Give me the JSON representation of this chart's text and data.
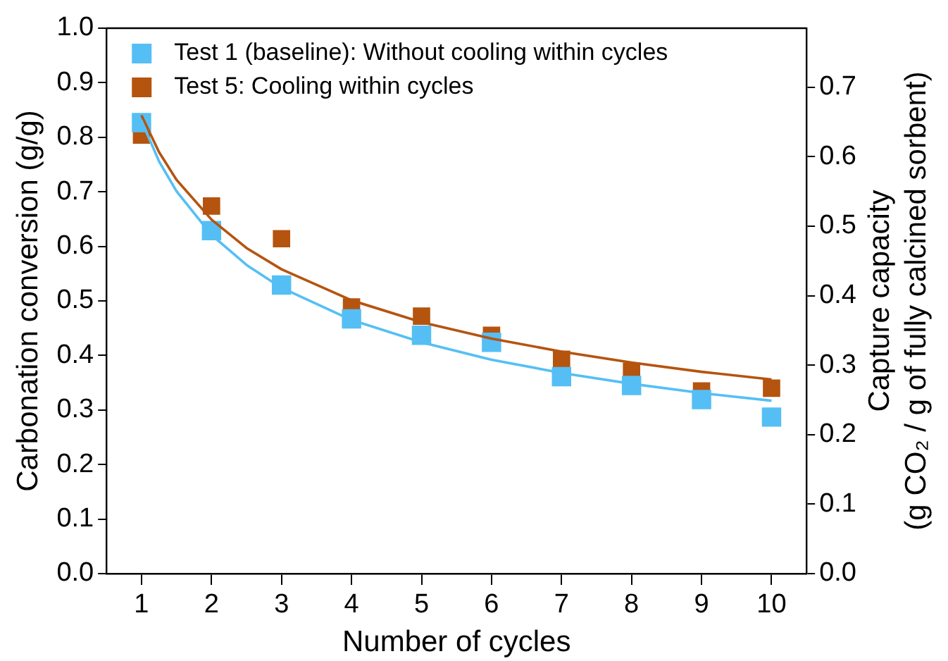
{
  "chart_data": {
    "type": "scatter",
    "xlabel": "Number of cycles",
    "ylabel": "Carbonation conversion (g/g)",
    "y2label": "Capture capacity\n(g CO₂ / g of fully calcined sorbent)",
    "x": [
      1,
      2,
      3,
      4,
      5,
      6,
      7,
      8,
      9,
      10
    ],
    "series": [
      {
        "name": "Test 1 (baseline): Without cooling within cycles",
        "color": "#55bff5",
        "marker": "square",
        "values": [
          0.827,
          0.629,
          0.529,
          0.467,
          0.437,
          0.424,
          0.361,
          0.345,
          0.319,
          0.287
        ]
      },
      {
        "name": "Test 5: Cooling within cycles",
        "color": "#b5540f",
        "marker": "square",
        "values": [
          0.804,
          0.674,
          0.614,
          0.489,
          0.472,
          0.437,
          0.393,
          0.371,
          0.335,
          0.34
        ]
      },
      {
        "type": "line",
        "color": "#55bff5",
        "marker": "none",
        "x": [
          1,
          1.25,
          1.5,
          2,
          2.5,
          3,
          4,
          5,
          6,
          7,
          8,
          9,
          10
        ],
        "values": [
          0.83,
          0.756,
          0.701,
          0.621,
          0.566,
          0.524,
          0.465,
          0.424,
          0.392,
          0.368,
          0.348,
          0.331,
          0.317
        ]
      },
      {
        "type": "line",
        "color": "#b5540f",
        "marker": "none",
        "x": [
          1,
          1.25,
          1.5,
          2,
          2.5,
          3,
          4,
          5,
          6,
          7,
          8,
          9,
          10
        ],
        "values": [
          0.84,
          0.773,
          0.722,
          0.649,
          0.597,
          0.558,
          0.501,
          0.461,
          0.431,
          0.407,
          0.387,
          0.37,
          0.356
        ]
      }
    ],
    "xlim": [
      0.5,
      10.5
    ],
    "xticks": [
      1,
      2,
      3,
      4,
      5,
      6,
      7,
      8,
      9,
      10
    ],
    "ylim": [
      0,
      1
    ],
    "yticks": [
      {
        "value": 0,
        "label": "0.0"
      },
      0.1,
      0.2,
      0.3,
      0.4,
      0.5,
      0.6,
      0.7,
      0.8,
      0.9,
      {
        "value": 1,
        "label": "1.0"
      }
    ],
    "y2lim": [
      0,
      0.785
    ],
    "y2ticks": [
      {
        "value": 0,
        "label": "0.0"
      },
      0.1,
      0.2,
      0.3,
      0.4,
      0.5,
      0.6,
      0.7
    ],
    "grid": false,
    "legend": "top left",
    "line_style": "solid"
  }
}
